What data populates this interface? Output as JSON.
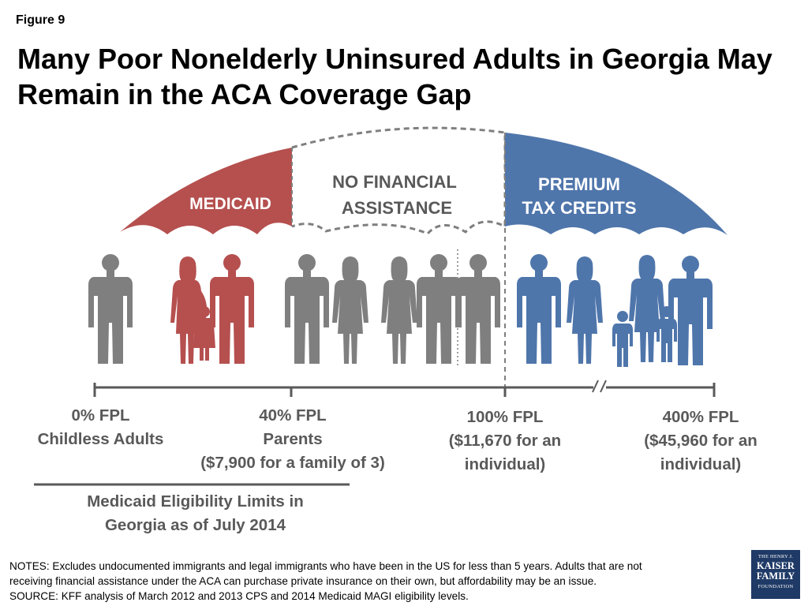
{
  "figure_label": "Figure 9",
  "title": "Many Poor Nonelderly Uninsured Adults in Georgia May Remain in the ACA Coverage Gap",
  "umbrella": {
    "medicaid": "MEDICAID",
    "gap_line1": "NO FINANCIAL",
    "gap_line2": "ASSISTANCE",
    "ptc_line1": "PREMIUM",
    "ptc_line2": "TAX CREDITS"
  },
  "colors": {
    "medicaid": "#b5504f",
    "gap": "#7f7f7f",
    "tax_credits": "#4f76ab",
    "axis": "#595959"
  },
  "axis_labels": {
    "fpl0_line1": "0% FPL",
    "fpl0_line2": "Childless Adults",
    "fpl40_line1": "40% FPL",
    "fpl40_line2": "Parents",
    "fpl40_line3": "($7,900 for a family of 3)",
    "fpl100_line1": "100% FPL",
    "fpl100_line2": "($11,670 for an",
    "fpl100_line3": "individual)",
    "fpl400_line1": "400% FPL",
    "fpl400_line2": "($45,960 for an",
    "fpl400_line3": "individual)"
  },
  "eligibility_caption": {
    "line1": "Medicaid Eligibility Limits in",
    "line2": "Georgia as of July 2014"
  },
  "notes": {
    "line1": "NOTES: Excludes undocumented immigrants and legal immigrants who have been in the US for less than 5 years. Adults that are not",
    "line2": "receiving financial assistance under the ACA can purchase private insurance on their own, but affordability may be an issue.",
    "line3": "SOURCE: KFF analysis of March 2012 and 2013 CPS and 2014 Medicaid MAGI eligibility levels."
  },
  "logo": {
    "line1": "THE HENRY J.",
    "line2": "KAISER",
    "line3": "FAMILY",
    "line4": "FOUNDATION"
  }
}
